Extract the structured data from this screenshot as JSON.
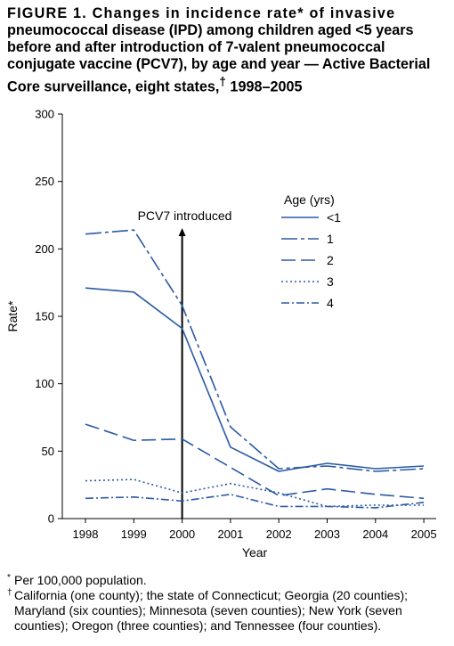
{
  "figure": {
    "title_lead": "FIGURE 1. Changes in incidence rate* of invasive",
    "title_rest": "pneumococcal disease (IPD) among children aged <5 years before and after introduction of 7-valent pneumococcal conjugate vaccine (PCV7), by age and year — Active Bacterial Core surveillance, eight states,",
    "title_dagger": "†",
    "title_end": " 1998–2005"
  },
  "chart_data": {
    "type": "line",
    "title": "",
    "xlabel": "Year",
    "ylabel": "Rate*",
    "x": [
      1998,
      1999,
      2000,
      2001,
      2002,
      2003,
      2004,
      2005
    ],
    "ylim": [
      0,
      300
    ],
    "yticks": [
      0,
      50,
      100,
      150,
      200,
      250,
      300
    ],
    "grid": false,
    "legend_title": "Age (yrs)",
    "legend_position": "top-right",
    "series": [
      {
        "name": "<1",
        "style": "solid",
        "values": [
          171,
          168,
          141,
          53,
          35,
          41,
          37,
          39
        ]
      },
      {
        "name": "1",
        "style": "long-dash-dot",
        "values": [
          211,
          214,
          158,
          68,
          37,
          39,
          35,
          37
        ]
      },
      {
        "name": "2",
        "style": "long-dash",
        "values": [
          70,
          58,
          59,
          38,
          17,
          22,
          18,
          15
        ]
      },
      {
        "name": "3",
        "style": "dotted",
        "values": [
          28,
          29,
          19,
          26,
          19,
          9,
          10,
          10
        ]
      },
      {
        "name": "4",
        "style": "dash-dot",
        "values": [
          15,
          16,
          13,
          18,
          9,
          9,
          8,
          12
        ]
      }
    ],
    "annotation": {
      "text": "PCV7 introduced",
      "x": 2000
    }
  },
  "footnotes": [
    {
      "mark": "*",
      "text": "Per 100,000 population."
    },
    {
      "mark": "†",
      "text": "California (one county); the state of Connecticut; Georgia (20 counties); Maryland (six counties); Minnesota (seven counties); New York (seven counties); Oregon (three counties); and Tennessee (four counties)."
    }
  ],
  "colors": {
    "line": "#2b5aa5",
    "axis": "#000000"
  }
}
